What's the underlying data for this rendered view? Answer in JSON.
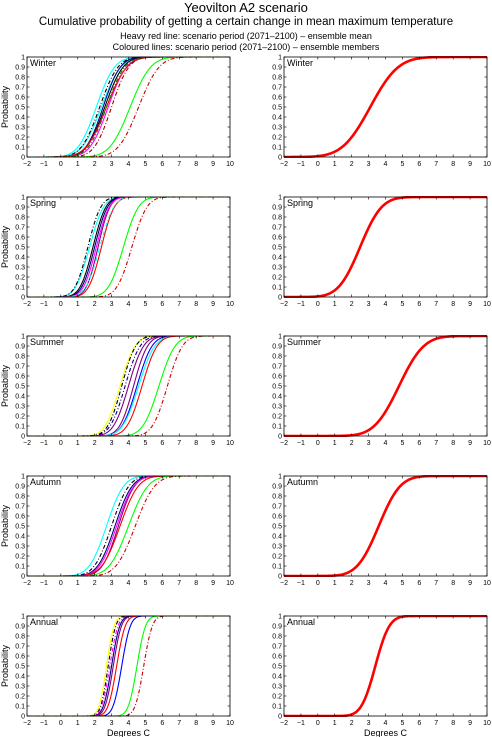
{
  "page": {
    "title": "Yeovilton A2 scenario",
    "subtitle": "Cumulative probability of getting a certain change in mean maximum temperature",
    "note_mean": "Heavy red line: scenario period (2071–2100) – ensemble mean",
    "note_members": "Coloured lines: scenario period (2071–2100) – ensemble members"
  },
  "chart_data": [
    {
      "type": "line",
      "panel": "members",
      "label": "Winter",
      "xlabel": "",
      "ylabel": "Probability",
      "xlim": [
        -2,
        10
      ],
      "ylim": [
        0,
        1
      ],
      "xticks": [
        "−2",
        "−1",
        "0",
        "1",
        "2",
        "3",
        "4",
        "5",
        "6",
        "7",
        "8",
        "9",
        "10"
      ],
      "yticks": [
        "0",
        "0.1",
        "0.2",
        "0.3",
        "0.4",
        "0.5",
        "0.6",
        "0.7",
        "0.8",
        "0.9",
        "1"
      ],
      "grid": false,
      "series": [
        {
          "color": "#00ffff",
          "style": "solid",
          "mean": 2.1,
          "sd": 0.85
        },
        {
          "color": "#00ffff",
          "style": "solid",
          "mean": 2.4,
          "sd": 0.9
        },
        {
          "color": "#000000",
          "style": "dashdot",
          "mean": 2.3,
          "sd": 0.85
        },
        {
          "color": "#000000",
          "style": "solid",
          "mean": 2.6,
          "sd": 0.85
        },
        {
          "color": "#000080",
          "style": "solid",
          "mean": 2.5,
          "sd": 0.8
        },
        {
          "color": "#ff00ff",
          "style": "solid",
          "mean": 2.8,
          "sd": 0.85
        },
        {
          "color": "#ff0000",
          "style": "solid",
          "mean": 2.7,
          "sd": 0.95
        },
        {
          "color": "#990000",
          "style": "dashdot",
          "mean": 3.0,
          "sd": 0.8
        },
        {
          "color": "#008000",
          "style": "dashdot",
          "mean": 2.7,
          "sd": 0.85
        },
        {
          "color": "#00ff00",
          "style": "solid",
          "mean": 4.1,
          "sd": 0.95
        },
        {
          "color": "#cc0000",
          "style": "dashdot",
          "mean": 4.6,
          "sd": 0.95
        }
      ]
    },
    {
      "type": "line",
      "panel": "mean",
      "label": "Winter",
      "xlabel": "",
      "ylabel": "",
      "xlim": [
        -2,
        10
      ],
      "ylim": [
        0,
        1
      ],
      "xticks": [
        "−2",
        "−1",
        "0",
        "1",
        "2",
        "3",
        "4",
        "5",
        "6",
        "7",
        "8",
        "9",
        "10"
      ],
      "yticks": [
        "0",
        "0.1",
        "0.2",
        "0.3",
        "0.4",
        "0.5",
        "0.6",
        "0.7",
        "0.8",
        "0.9",
        "1"
      ],
      "grid": false,
      "series": [
        {
          "color": "#ff0000",
          "style": "heavy",
          "mean": 3.1,
          "sd": 1.3
        }
      ]
    },
    {
      "type": "line",
      "panel": "members",
      "label": "Spring",
      "xlabel": "",
      "ylabel": "Probability",
      "xlim": [
        -2,
        10
      ],
      "ylim": [
        0,
        1
      ],
      "xticks": [
        "−2",
        "−1",
        "0",
        "1",
        "2",
        "3",
        "4",
        "5",
        "6",
        "7",
        "8",
        "9",
        "10"
      ],
      "yticks": [
        "0",
        "0.1",
        "0.2",
        "0.3",
        "0.4",
        "0.5",
        "0.6",
        "0.7",
        "0.8",
        "0.9",
        "1"
      ],
      "grid": false,
      "series": [
        {
          "color": "#00ffff",
          "style": "solid",
          "mean": 1.7,
          "sd": 0.65
        },
        {
          "color": "#000000",
          "style": "dashdot",
          "mean": 1.6,
          "sd": 0.6
        },
        {
          "color": "#000000",
          "style": "solid",
          "mean": 1.9,
          "sd": 0.6
        },
        {
          "color": "#000080",
          "style": "solid",
          "mean": 2.0,
          "sd": 0.6
        },
        {
          "color": "#800080",
          "style": "solid",
          "mean": 2.2,
          "sd": 0.55
        },
        {
          "color": "#ff00ff",
          "style": "solid",
          "mean": 2.1,
          "sd": 0.6
        },
        {
          "color": "#ff0000",
          "style": "solid",
          "mean": 2.4,
          "sd": 0.6
        },
        {
          "color": "#00ffff",
          "style": "dashdot",
          "mean": 2.3,
          "sd": 0.65
        },
        {
          "color": "#00ff00",
          "style": "solid",
          "mean": 3.7,
          "sd": 0.7
        },
        {
          "color": "#cc0000",
          "style": "dashdot",
          "mean": 4.2,
          "sd": 0.7
        }
      ]
    },
    {
      "type": "line",
      "panel": "mean",
      "label": "Spring",
      "xlabel": "",
      "ylabel": "",
      "xlim": [
        -2,
        10
      ],
      "ylim": [
        0,
        1
      ],
      "xticks": [
        "−2",
        "−1",
        "0",
        "1",
        "2",
        "3",
        "4",
        "5",
        "6",
        "7",
        "8",
        "9",
        "10"
      ],
      "yticks": [
        "0",
        "0.1",
        "0.2",
        "0.3",
        "0.4",
        "0.5",
        "0.6",
        "0.7",
        "0.8",
        "0.9",
        "1"
      ],
      "grid": false,
      "series": [
        {
          "color": "#ff0000",
          "style": "heavy",
          "mean": 2.5,
          "sd": 1.0
        }
      ]
    },
    {
      "type": "line",
      "panel": "members",
      "label": "Summer",
      "xlabel": "",
      "ylabel": "Probability",
      "xlim": [
        -2,
        10
      ],
      "ylim": [
        0,
        1
      ],
      "xticks": [
        "−2",
        "−1",
        "0",
        "1",
        "2",
        "3",
        "4",
        "5",
        "6",
        "7",
        "8",
        "9",
        "10"
      ],
      "yticks": [
        "0",
        "0.1",
        "0.2",
        "0.3",
        "0.4",
        "0.5",
        "0.6",
        "0.7",
        "0.8",
        "0.9",
        "1"
      ],
      "grid": false,
      "series": [
        {
          "color": "#ffff00",
          "style": "solid",
          "mean": 3.5,
          "sd": 0.7
        },
        {
          "color": "#000000",
          "style": "dashdot",
          "mean": 3.6,
          "sd": 0.65
        },
        {
          "color": "#000080",
          "style": "dashdot",
          "mean": 3.8,
          "sd": 0.7
        },
        {
          "color": "#800080",
          "style": "solid",
          "mean": 4.0,
          "sd": 0.7
        },
        {
          "color": "#800080",
          "style": "solid",
          "mean": 4.3,
          "sd": 0.65
        },
        {
          "color": "#0000ff",
          "style": "solid",
          "mean": 4.5,
          "sd": 0.7
        },
        {
          "color": "#00ffff",
          "style": "solid",
          "mean": 4.6,
          "sd": 0.75
        },
        {
          "color": "#ff0000",
          "style": "solid",
          "mean": 4.8,
          "sd": 0.7
        },
        {
          "color": "#00ff00",
          "style": "solid",
          "mean": 5.8,
          "sd": 0.75
        },
        {
          "color": "#cc0000",
          "style": "dashdot",
          "mean": 6.3,
          "sd": 0.7
        }
      ]
    },
    {
      "type": "line",
      "panel": "mean",
      "label": "Summer",
      "xlabel": "",
      "ylabel": "",
      "xlim": [
        -2,
        10
      ],
      "ylim": [
        0,
        1
      ],
      "xticks": [
        "−2",
        "−1",
        "0",
        "1",
        "2",
        "3",
        "4",
        "5",
        "6",
        "7",
        "8",
        "9",
        "10"
      ],
      "yticks": [
        "0",
        "0.1",
        "0.2",
        "0.3",
        "0.4",
        "0.5",
        "0.6",
        "0.7",
        "0.8",
        "0.9",
        "1"
      ],
      "grid": false,
      "series": [
        {
          "color": "#ff0000",
          "style": "heavy",
          "mean": 4.8,
          "sd": 1.15
        }
      ]
    },
    {
      "type": "line",
      "panel": "members",
      "label": "Autumn",
      "xlabel": "",
      "ylabel": "Probability",
      "xlim": [
        -2,
        10
      ],
      "ylim": [
        0,
        1
      ],
      "xticks": [
        "−2",
        "−1",
        "0",
        "1",
        "2",
        "3",
        "4",
        "5",
        "6",
        "7",
        "8",
        "9",
        "10"
      ],
      "yticks": [
        "0",
        "0.1",
        "0.2",
        "0.3",
        "0.4",
        "0.5",
        "0.6",
        "0.7",
        "0.8",
        "0.9",
        "1"
      ],
      "grid": false,
      "series": [
        {
          "color": "#00ffff",
          "style": "solid",
          "mean": 2.7,
          "sd": 0.8
        },
        {
          "color": "#000000",
          "style": "dashdot",
          "mean": 3.0,
          "sd": 0.8
        },
        {
          "color": "#000080",
          "style": "solid",
          "mean": 3.2,
          "sd": 0.8
        },
        {
          "color": "#800080",
          "style": "solid",
          "mean": 3.4,
          "sd": 0.75
        },
        {
          "color": "#ff00ff",
          "style": "solid",
          "mean": 3.3,
          "sd": 0.8
        },
        {
          "color": "#ff0000",
          "style": "solid",
          "mean": 3.5,
          "sd": 0.85
        },
        {
          "color": "#00ff00",
          "style": "solid",
          "mean": 4.0,
          "sd": 0.9
        },
        {
          "color": "#cc0000",
          "style": "dashdot",
          "mean": 4.4,
          "sd": 0.9
        }
      ]
    },
    {
      "type": "line",
      "panel": "mean",
      "label": "Autumn",
      "xlabel": "",
      "ylabel": "",
      "xlim": [
        -2,
        10
      ],
      "ylim": [
        0,
        1
      ],
      "xticks": [
        "−2",
        "−1",
        "0",
        "1",
        "2",
        "3",
        "4",
        "5",
        "6",
        "7",
        "8",
        "9",
        "10"
      ],
      "yticks": [
        "0",
        "0.1",
        "0.2",
        "0.3",
        "0.4",
        "0.5",
        "0.6",
        "0.7",
        "0.8",
        "0.9",
        "1"
      ],
      "grid": false,
      "series": [
        {
          "color": "#ff0000",
          "style": "heavy",
          "mean": 3.6,
          "sd": 1.0
        }
      ]
    },
    {
      "type": "line",
      "panel": "members",
      "label": "Annual",
      "xlabel": "Degrees C",
      "ylabel": "Probability",
      "xlim": [
        -2,
        10
      ],
      "ylim": [
        0,
        1
      ],
      "xticks": [
        "−2",
        "−1",
        "0",
        "1",
        "2",
        "3",
        "4",
        "5",
        "6",
        "7",
        "8",
        "9",
        "10"
      ],
      "yticks": [
        "0",
        "0.1",
        "0.2",
        "0.3",
        "0.4",
        "0.5",
        "0.6",
        "0.7",
        "0.8",
        "0.9",
        "1"
      ],
      "grid": false,
      "series": [
        {
          "color": "#ffff00",
          "style": "solid",
          "mean": 2.7,
          "sd": 0.35
        },
        {
          "color": "#000000",
          "style": "dashdot",
          "mean": 2.8,
          "sd": 0.35
        },
        {
          "color": "#ff00ff",
          "style": "dashdot",
          "mean": 2.9,
          "sd": 0.38
        },
        {
          "color": "#000080",
          "style": "solid",
          "mean": 3.0,
          "sd": 0.38
        },
        {
          "color": "#800080",
          "style": "solid",
          "mean": 3.1,
          "sd": 0.38
        },
        {
          "color": "#ff0000",
          "style": "solid",
          "mean": 3.3,
          "sd": 0.4
        },
        {
          "color": "#0000ff",
          "style": "solid",
          "mean": 3.6,
          "sd": 0.4
        },
        {
          "color": "#00ff00",
          "style": "solid",
          "mean": 4.5,
          "sd": 0.4
        },
        {
          "color": "#cc0000",
          "style": "dashdot",
          "mean": 4.9,
          "sd": 0.4
        }
      ]
    },
    {
      "type": "line",
      "panel": "mean",
      "label": "Annual",
      "xlabel": "Degrees C",
      "ylabel": "",
      "xlim": [
        -2,
        10
      ],
      "ylim": [
        0,
        1
      ],
      "xticks": [
        "−2",
        "−1",
        "0",
        "1",
        "2",
        "3",
        "4",
        "5",
        "6",
        "7",
        "8",
        "9",
        "10"
      ],
      "yticks": [
        "0",
        "0.1",
        "0.2",
        "0.3",
        "0.4",
        "0.5",
        "0.6",
        "0.7",
        "0.8",
        "0.9",
        "1"
      ],
      "grid": false,
      "series": [
        {
          "color": "#ff0000",
          "style": "heavy",
          "mean": 3.4,
          "sd": 0.65
        }
      ]
    }
  ]
}
